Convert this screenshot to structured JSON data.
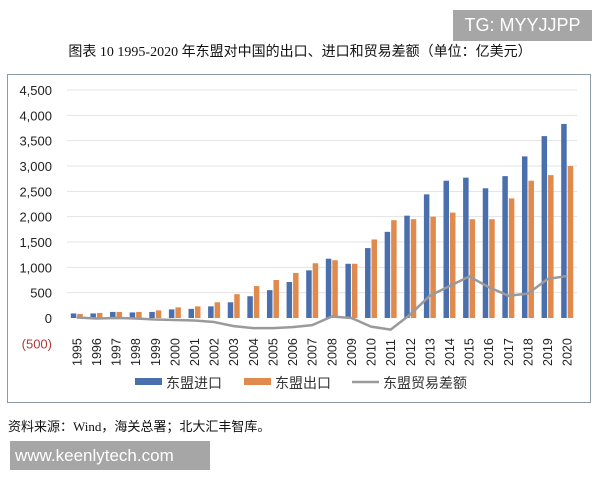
{
  "watermark_top": "TG: MYYJJPP",
  "title": "图表 10 1995-2020 年东盟对中国的出口、进口和贸易差额（单位：亿美元）",
  "source": "资料来源：Wind，海关总署；北大汇丰智库。",
  "watermark_bottom": "www.keenlytech.com",
  "chart_data": {
    "type": "bar",
    "title": "",
    "xlabel": "",
    "ylabel": "",
    "ylim": [
      -500,
      4500
    ],
    "yticks": [
      -500,
      0,
      500,
      1000,
      1500,
      2000,
      2500,
      3000,
      3500,
      4000,
      4500
    ],
    "ytick_labels": [
      "(500)",
      "0",
      "500",
      "1,000",
      "1,500",
      "2,000",
      "2,500",
      "3,000",
      "3,500",
      "4,000",
      "4,500"
    ],
    "grid": true,
    "legend_position": "bottom",
    "categories": [
      "1995",
      "1996",
      "1997",
      "1998",
      "1999",
      "2000",
      "2001",
      "2002",
      "2003",
      "2004",
      "2005",
      "2006",
      "2007",
      "2008",
      "2009",
      "2010",
      "2011",
      "2012",
      "2013",
      "2014",
      "2015",
      "2016",
      "2017",
      "2018",
      "2019",
      "2020"
    ],
    "series": [
      {
        "name": "东盟进口",
        "type": "bar",
        "color": "#4a6fad",
        "values": [
          90,
          90,
          120,
          110,
          120,
          170,
          180,
          230,
          310,
          430,
          550,
          710,
          940,
          1170,
          1070,
          1380,
          1700,
          2020,
          2440,
          2710,
          2770,
          2560,
          2800,
          3190,
          3590,
          3830
        ]
      },
      {
        "name": "东盟出口",
        "type": "bar",
        "color": "#e08a4e",
        "values": [
          80,
          100,
          120,
          120,
          150,
          210,
          230,
          310,
          470,
          630,
          750,
          890,
          1080,
          1140,
          1070,
          1550,
          1930,
          1950,
          2000,
          2080,
          1950,
          1950,
          2360,
          2710,
          2820,
          3000
        ]
      },
      {
        "name": "东盟贸易差额",
        "type": "line",
        "color": "#9a9a9a",
        "values": [
          10,
          -10,
          0,
          -10,
          -30,
          -40,
          -50,
          -80,
          -160,
          -200,
          -200,
          -180,
          -140,
          30,
          0,
          -170,
          -230,
          70,
          440,
          630,
          820,
          610,
          440,
          480,
          770,
          830
        ]
      }
    ]
  }
}
